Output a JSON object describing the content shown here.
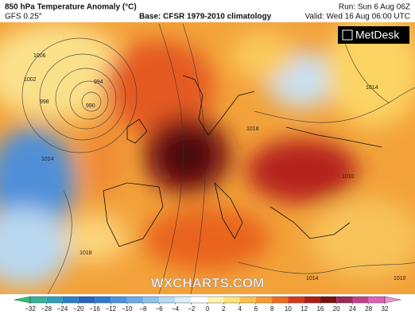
{
  "header": {
    "title": "850 hPa Temperature Anomaly (°C)",
    "model": "GFS 0.25°",
    "base": "Base: CFSR 1979-2010 climatology",
    "run": "Run: Sun 6 Aug 06Z",
    "valid": "Valid: Wed 16 Aug 06:00 UTC"
  },
  "logo": "MetDesk",
  "watermark": "WXCHARTS.COM",
  "isobar_labels": [
    "1006",
    "1002",
    "998",
    "994",
    "990",
    "1014",
    "1018",
    "1014",
    "1010",
    "1018",
    "1014",
    "1010"
  ],
  "colorbar": {
    "ticks": [
      "−32",
      "−28",
      "−24",
      "−20",
      "−16",
      "−12",
      "−10",
      "−8",
      "−6",
      "−4",
      "−2",
      "0",
      "2",
      "4",
      "6",
      "8",
      "10",
      "12",
      "16",
      "20",
      "24",
      "28",
      "32"
    ],
    "colors": [
      "#2fbf71",
      "#35b39a",
      "#2f9fb8",
      "#2a7fc9",
      "#2563c6",
      "#2f78d6",
      "#4a92e0",
      "#6aa9e8",
      "#8ec2f0",
      "#b7d9f5",
      "#dcecf8",
      "#ffffff",
      "#fff3b0",
      "#fde37a",
      "#fbc24a",
      "#f89a2e",
      "#ef6a1f",
      "#d9361a",
      "#b01c14",
      "#7a1010",
      "#9c2a55",
      "#c43f8a",
      "#de62b6",
      "#f08fd6"
    ]
  }
}
